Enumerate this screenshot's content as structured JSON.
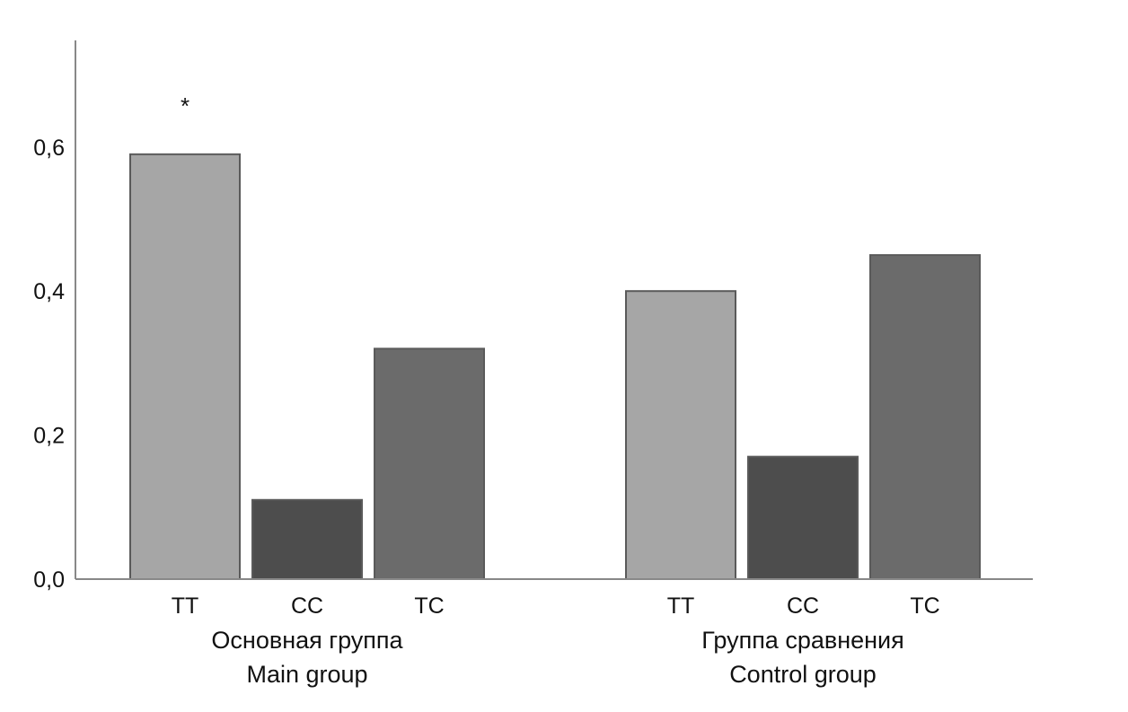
{
  "chart_data": {
    "type": "bar",
    "title": "",
    "xlabel": "",
    "ylabel": "",
    "ylim": [
      0,
      0.75
    ],
    "yticks": [
      "0,0",
      "0,2",
      "0,4",
      "0,6"
    ],
    "ytick_values": [
      0,
      0.2,
      0.4,
      0.6
    ],
    "grid": false,
    "groups": [
      {
        "label_ru": "Основная группа",
        "label_en": "Main group",
        "categories": [
          "TT",
          "CC",
          "TC"
        ],
        "values": [
          0.59,
          0.11,
          0.32
        ],
        "annotations": [
          "*",
          "",
          ""
        ]
      },
      {
        "label_ru": "Группа сравнения",
        "label_en": "Control group",
        "categories": [
          "TT",
          "CC",
          "TC"
        ],
        "values": [
          0.4,
          0.17,
          0.45
        ],
        "annotations": [
          "",
          "",
          ""
        ]
      }
    ],
    "colors": {
      "TT": "#a6a6a6",
      "CC": "#4d4d4d",
      "TC": "#6b6b6b",
      "stroke": "#5a5a5a",
      "axis": "#888888"
    }
  }
}
